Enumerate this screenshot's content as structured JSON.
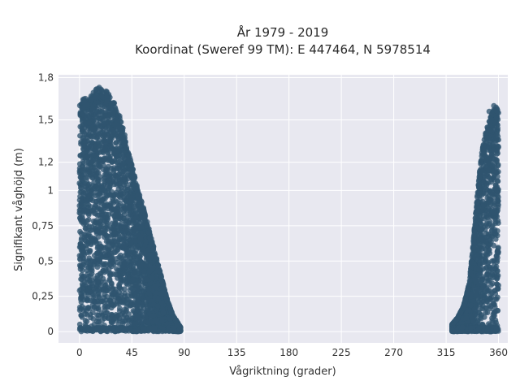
{
  "chart_data": {
    "type": "scatter",
    "title": "År 1979 - 2019",
    "subtitle": "Koordinat (Sweref 99 TM): E 447464, N 5978514",
    "xlabel": "Vågriktning (grader)",
    "ylabel": "Signifikant våghöjd (m)",
    "xlim": [
      -18,
      368
    ],
    "ylim": [
      -0.08,
      1.82
    ],
    "x_ticks": [
      {
        "value": 0,
        "label": "0"
      },
      {
        "value": 45,
        "label": "45"
      },
      {
        "value": 90,
        "label": "90"
      },
      {
        "value": 135,
        "label": "135"
      },
      {
        "value": 180,
        "label": "180"
      },
      {
        "value": 225,
        "label": "225"
      },
      {
        "value": 270,
        "label": "270"
      },
      {
        "value": 315,
        "label": "315"
      },
      {
        "value": 360,
        "label": "360"
      }
    ],
    "y_ticks": [
      {
        "value": 0,
        "label": "0"
      },
      {
        "value": 0.25,
        "label": "0,25"
      },
      {
        "value": 0.5,
        "label": "0,5"
      },
      {
        "value": 0.75,
        "label": "0,75"
      },
      {
        "value": 1,
        "label": "1"
      },
      {
        "value": 1.2,
        "label": "1,2"
      },
      {
        "value": 1.5,
        "label": "1,5"
      },
      {
        "value": 1.8,
        "label": "1,8"
      }
    ],
    "grid": true,
    "background": "#e8e8f0",
    "marker_color": "#2f5570",
    "clusters": [
      {
        "x_range": [
          0,
          87
        ],
        "envelope": [
          [
            0,
            1.62
          ],
          [
            5,
            1.66
          ],
          [
            10,
            1.68
          ],
          [
            15,
            1.73
          ],
          [
            20,
            1.72
          ],
          [
            25,
            1.7
          ],
          [
            30,
            1.62
          ],
          [
            35,
            1.52
          ],
          [
            40,
            1.36
          ],
          [
            45,
            1.18
          ],
          [
            50,
            1.02
          ],
          [
            55,
            0.88
          ],
          [
            60,
            0.72
          ],
          [
            65,
            0.56
          ],
          [
            70,
            0.4
          ],
          [
            75,
            0.24
          ],
          [
            80,
            0.12
          ],
          [
            87,
            0.03
          ]
        ]
      },
      {
        "x_range": [
          320,
          360
        ],
        "envelope": [
          [
            320,
            0.05
          ],
          [
            325,
            0.1
          ],
          [
            330,
            0.18
          ],
          [
            335,
            0.35
          ],
          [
            338,
            0.6
          ],
          [
            342,
            1.0
          ],
          [
            346,
            1.3
          ],
          [
            350,
            1.45
          ],
          [
            354,
            1.55
          ],
          [
            358,
            1.6
          ],
          [
            360,
            1.55
          ]
        ]
      }
    ],
    "outliers": [
      {
        "x": 17,
        "y": 1.73
      },
      {
        "x": 10,
        "y": 1.64
      },
      {
        "x": 341,
        "y": 0.3
      },
      {
        "x": 356,
        "y": 1.6
      },
      {
        "x": 352,
        "y": 1.56
      },
      {
        "x": 84,
        "y": 0.05
      },
      {
        "x": 78,
        "y": 0.09
      },
      {
        "x": 70,
        "y": 0.27
      }
    ]
  }
}
